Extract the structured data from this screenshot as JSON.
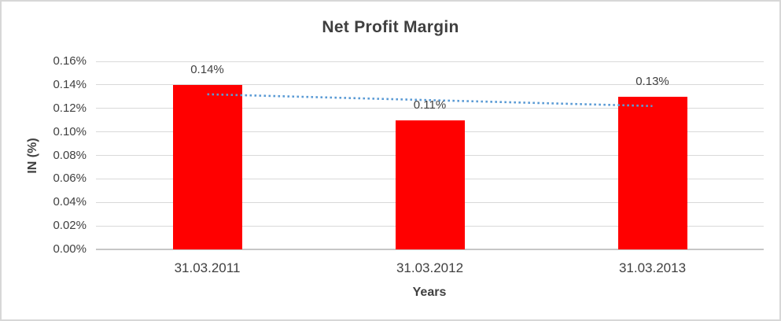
{
  "chart": {
    "title": "Net Profit Margin",
    "y_axis_title": "IN (%)",
    "x_axis_title": "Years"
  },
  "chart_data": {
    "type": "bar",
    "title": "Net Profit Margin",
    "xlabel": "Years",
    "ylabel": "IN (%)",
    "categories": [
      "31.03.2011",
      "31.03.2012",
      "31.03.2013"
    ],
    "values": [
      0.14,
      0.11,
      0.13
    ],
    "data_labels": [
      "0.14%",
      "0.11%",
      "0.13%"
    ],
    "ylim": [
      0,
      0.16
    ],
    "ytick_step": 0.02,
    "ytick_labels": [
      "0.00%",
      "0.02%",
      "0.04%",
      "0.06%",
      "0.08%",
      "0.10%",
      "0.12%",
      "0.14%",
      "0.16%"
    ],
    "grid": true,
    "legend": "none",
    "bar_color": "#ff0000",
    "gridline_color": "#d9d9d9",
    "text_color": "#404040",
    "trendline": {
      "style": "dotted",
      "color": "#5b9bd5",
      "start_value": 0.132,
      "end_value": 0.122
    }
  }
}
